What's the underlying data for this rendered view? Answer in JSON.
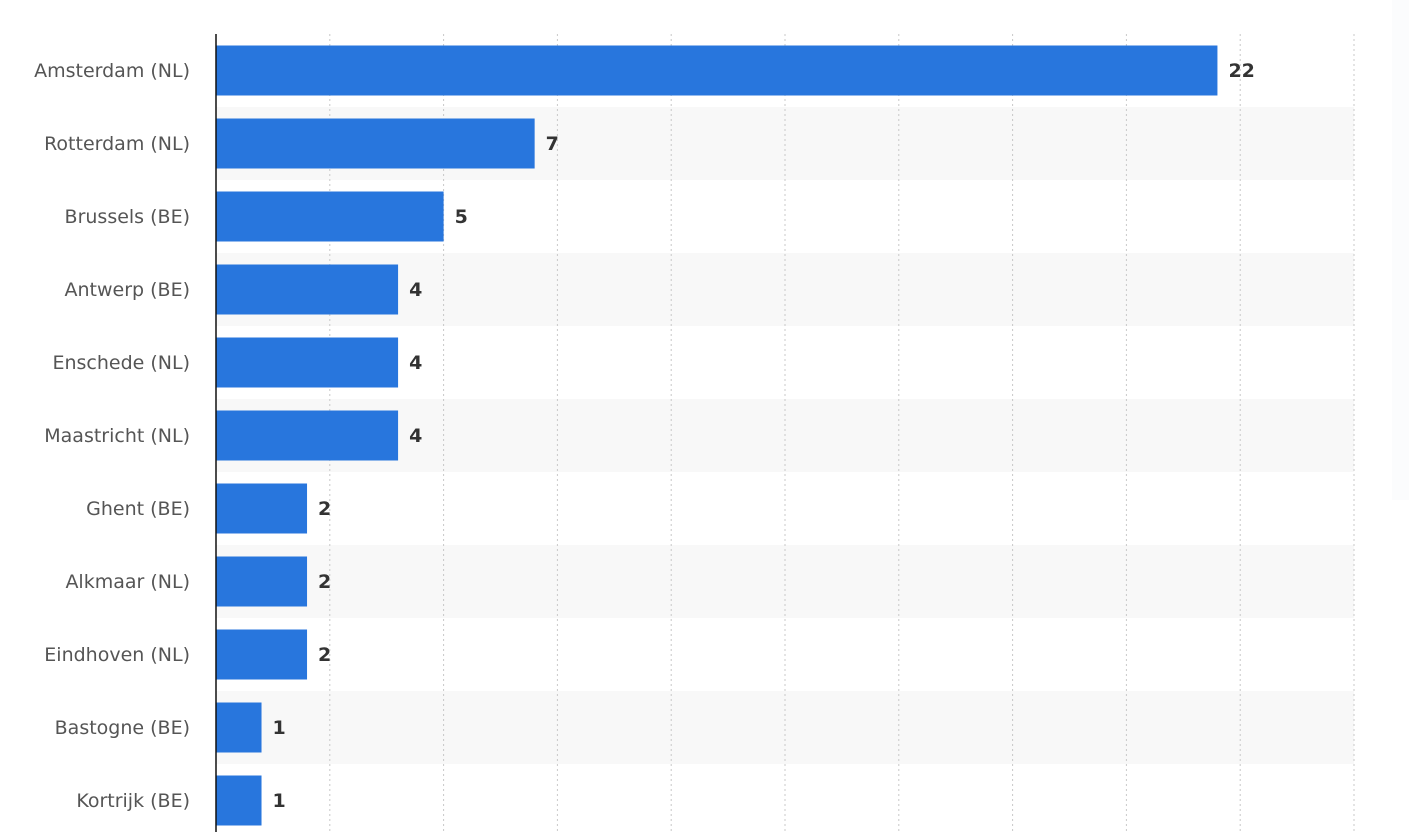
{
  "chart_data": {
    "type": "bar",
    "orientation": "horizontal",
    "categories": [
      "Amsterdam (NL)",
      "Rotterdam (NL)",
      "Brussels (BE)",
      "Antwerp (BE)",
      "Enschede (NL)",
      "Maastricht (NL)",
      "Ghent (BE)",
      "Alkmaar (NL)",
      "Eindhoven (NL)",
      "Bastogne (BE)",
      "Kortrijk (BE)"
    ],
    "values": [
      22,
      7,
      5,
      4,
      4,
      4,
      2,
      2,
      2,
      1,
      1
    ],
    "color": "#2876dd",
    "xlim": [
      0,
      25
    ],
    "xticks": [
      0,
      2.5,
      5,
      7.5,
      10,
      12.5,
      15,
      17.5,
      20,
      22.5,
      25
    ],
    "grid": true
  }
}
